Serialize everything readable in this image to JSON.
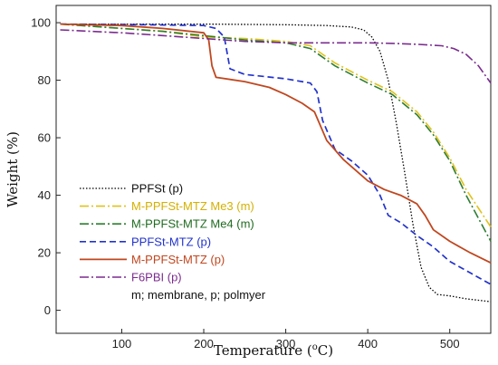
{
  "chart_data": {
    "type": "line",
    "xlabel_main": "Temperature (",
    "xlabel_sup": "o",
    "xlabel_end": "C)",
    "ylabel": "Weight (%)",
    "xlim": [
      20,
      550
    ],
    "ylim": [
      -8,
      106
    ],
    "xticks": [
      100,
      200,
      300,
      400,
      500
    ],
    "yticks": [
      0,
      20,
      40,
      60,
      80,
      100
    ],
    "grid": false,
    "legend_placement": "bottom-left",
    "legend_note": "m; membrane, p; polmyer",
    "series": [
      {
        "name": "PPFSt (p)",
        "color": "#000000",
        "dash": "1.5,2",
        "width": 1.3,
        "label_color": "#111111",
        "x": [
          25,
          100,
          200,
          300,
          350,
          380,
          395,
          405,
          415,
          425,
          435,
          445,
          455,
          465,
          475,
          485,
          500,
          520,
          550
        ],
        "y": [
          99.5,
          99.5,
          99.5,
          99.3,
          99,
          98.5,
          97.5,
          95,
          90,
          80,
          65,
          48,
          30,
          15,
          8,
          5.5,
          5,
          4,
          3
        ]
      },
      {
        "name": "M-PPFSt-MTZ Me3 (m)",
        "color": "#e0c21a",
        "dash": "10,3,2,3",
        "width": 1.6,
        "label_color": "#d4b000",
        "x": [
          25,
          100,
          150,
          200,
          250,
          300,
          330,
          360,
          400,
          430,
          460,
          480,
          500,
          520,
          550
        ],
        "y": [
          99.5,
          98,
          97,
          95,
          94.5,
          93.5,
          92,
          86,
          80,
          76,
          69,
          62,
          53,
          42,
          29
        ]
      },
      {
        "name": "M-PPFSt-MTZ Me4 (m)",
        "color": "#2e7d32",
        "dash": "10,3,2,3",
        "width": 1.6,
        "label_color": "#1f6b1f",
        "x": [
          25,
          100,
          150,
          200,
          250,
          300,
          330,
          360,
          400,
          430,
          460,
          480,
          500,
          520,
          550
        ],
        "y": [
          99.5,
          98,
          97,
          95.5,
          94,
          93,
          91,
          85,
          79,
          75,
          68,
          61,
          52,
          40,
          24
        ]
      },
      {
        "name": "PPFSt-MTZ (p)",
        "color": "#2233cc",
        "dash": "7,4",
        "width": 1.7,
        "label_color": "#2233cc",
        "x": [
          25,
          100,
          200,
          215,
          225,
          232,
          250,
          300,
          330,
          338,
          345,
          360,
          380,
          400,
          415,
          425,
          440,
          460,
          480,
          500,
          525,
          550
        ],
        "y": [
          99.5,
          99.4,
          99,
          98,
          95,
          84,
          82,
          80.5,
          79,
          76,
          66,
          56,
          52,
          47,
          40,
          33,
          30.5,
          26,
          22,
          17,
          13,
          9
        ]
      },
      {
        "name": "M-PPFSt-MTZ (p)",
        "color": "#c0471f",
        "dash": "",
        "width": 1.8,
        "label_color": "#c0471f",
        "x": [
          25,
          100,
          150,
          200,
          206,
          210,
          215,
          250,
          280,
          300,
          320,
          335,
          350,
          370,
          400,
          420,
          440,
          460,
          470,
          480,
          500,
          525,
          550
        ],
        "y": [
          99.5,
          99,
          98,
          96.5,
          94,
          85,
          81,
          79.5,
          77.5,
          75,
          72,
          69,
          59,
          52.5,
          45,
          42,
          40,
          37,
          33,
          28,
          24,
          20,
          16.5
        ]
      },
      {
        "name": "F6PBI (p)",
        "color": "#7b2c8f",
        "dash": "10,3,2,3",
        "width": 1.6,
        "label_color": "#7b2c8f",
        "x": [
          25,
          100,
          150,
          200,
          250,
          300,
          350,
          400,
          430,
          460,
          490,
          505,
          520,
          535,
          550
        ],
        "y": [
          97.5,
          96.5,
          95.5,
          94.5,
          93.5,
          93,
          93,
          93,
          92.8,
          92.5,
          92,
          91,
          89,
          85,
          79
        ]
      }
    ]
  }
}
